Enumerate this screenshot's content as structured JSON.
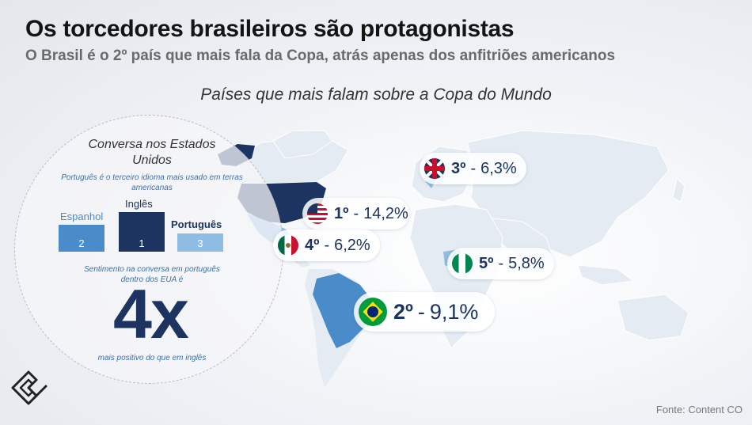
{
  "header": {
    "title": "Os torcedores brasileiros são protagonistas",
    "subtitle": "O Brasil é o 2º país que mais fala da Copa, atrás apenas dos anfitriões americanos",
    "map_title": "Países que mais falam sobre a Copa do Mundo"
  },
  "us_panel": {
    "title": "Conversa nos Estados Unidos",
    "note": "Português é o terceiro idioma mais usado em terras americanas",
    "languages": [
      {
        "label": "Espanhol",
        "rank": "2",
        "color": "#4a8bc9"
      },
      {
        "label": "Inglês",
        "rank": "1",
        "color": "#1d3461"
      },
      {
        "label": "Português",
        "rank": "3",
        "color": "#8fbce3"
      }
    ],
    "sentiment_note": "Sentimento na conversa em português dentro dos EUA é",
    "multiplier": "4x",
    "comparison": "mais positivo do que em inglês"
  },
  "ranking": [
    {
      "rank": "1º",
      "country": "Estados Unidos",
      "value": "14,2%",
      "icon": "usa-flag-icon"
    },
    {
      "rank": "2º",
      "country": "Brasil",
      "value": "9,1%",
      "icon": "brazil-flag-icon"
    },
    {
      "rank": "3º",
      "country": "Reino Unido",
      "value": "6,3%",
      "icon": "uk-flag-icon"
    },
    {
      "rank": "4º",
      "country": "México",
      "value": "6,2%",
      "icon": "mexico-flag-icon"
    },
    {
      "rank": "5º",
      "country": "Nigéria",
      "value": "5,8%",
      "icon": "nigeria-flag-icon"
    }
  ],
  "colors": {
    "dark_blue": "#1d3461",
    "mid_blue": "#4a8bc9",
    "light_blue": "#bcd6ee",
    "land": "#e4ebf3"
  },
  "footer": {
    "source": "Fonte: Content CO"
  }
}
